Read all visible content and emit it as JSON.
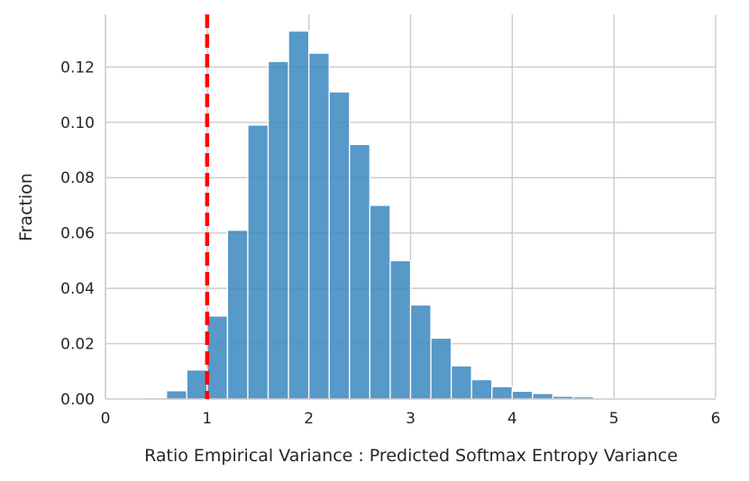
{
  "chart_data": {
    "type": "bar",
    "title": "",
    "xlabel": "Ratio Empirical Variance : Predicted Softmax Entropy Variance",
    "ylabel": "Fraction",
    "xlim": [
      0,
      6
    ],
    "ylim": [
      0,
      0.139
    ],
    "xticks": [
      "0",
      "1",
      "2",
      "3",
      "4",
      "5",
      "6"
    ],
    "yticks": [
      "0.00",
      "0.02",
      "0.04",
      "0.06",
      "0.08",
      "0.10",
      "0.12"
    ],
    "grid": true,
    "bin_width": 0.2,
    "bins": [
      {
        "x0": 0.4,
        "x1": 0.6,
        "value": 0.0005
      },
      {
        "x0": 0.6,
        "x1": 0.8,
        "value": 0.003
      },
      {
        "x0": 0.8,
        "x1": 1.0,
        "value": 0.0105
      },
      {
        "x0": 1.0,
        "x1": 1.2,
        "value": 0.03
      },
      {
        "x0": 1.2,
        "x1": 1.4,
        "value": 0.061
      },
      {
        "x0": 1.4,
        "x1": 1.6,
        "value": 0.099
      },
      {
        "x0": 1.6,
        "x1": 1.8,
        "value": 0.122
      },
      {
        "x0": 1.8,
        "x1": 2.0,
        "value": 0.133
      },
      {
        "x0": 2.0,
        "x1": 2.2,
        "value": 0.125
      },
      {
        "x0": 2.2,
        "x1": 2.4,
        "value": 0.111
      },
      {
        "x0": 2.4,
        "x1": 2.6,
        "value": 0.092
      },
      {
        "x0": 2.6,
        "x1": 2.8,
        "value": 0.07
      },
      {
        "x0": 2.8,
        "x1": 3.0,
        "value": 0.05
      },
      {
        "x0": 3.0,
        "x1": 3.2,
        "value": 0.034
      },
      {
        "x0": 3.2,
        "x1": 3.4,
        "value": 0.022
      },
      {
        "x0": 3.4,
        "x1": 3.6,
        "value": 0.012
      },
      {
        "x0": 3.6,
        "x1": 3.8,
        "value": 0.007
      },
      {
        "x0": 3.8,
        "x1": 4.0,
        "value": 0.0045
      },
      {
        "x0": 4.0,
        "x1": 4.2,
        "value": 0.0028
      },
      {
        "x0": 4.2,
        "x1": 4.4,
        "value": 0.002
      },
      {
        "x0": 4.4,
        "x1": 4.6,
        "value": 0.001
      },
      {
        "x0": 4.6,
        "x1": 4.8,
        "value": 0.0008
      },
      {
        "x0": 4.8,
        "x1": 5.0,
        "value": 0.0003
      },
      {
        "x0": 5.0,
        "x1": 5.2,
        "value": 0.0002
      },
      {
        "x0": 5.2,
        "x1": 5.4,
        "value": 0.0003
      },
      {
        "x0": 5.4,
        "x1": 5.6,
        "value": 0.0001
      },
      {
        "x0": 5.6,
        "x1": 5.8,
        "value": 0.0003
      },
      {
        "x0": 5.8,
        "x1": 6.0,
        "value": 0.0002
      }
    ],
    "reference_line": {
      "x": 1.0,
      "color": "#ff0000",
      "style": "dashed"
    },
    "bar_color": "#3a87c0"
  }
}
